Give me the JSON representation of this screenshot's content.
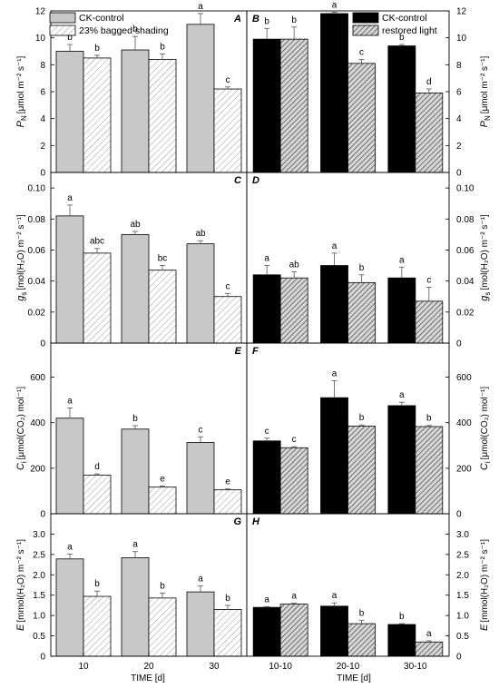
{
  "chart_data": {
    "type": "bar",
    "figure_xlabel": "TIME [d]",
    "columns": [
      {
        "categories": [
          "10",
          "20",
          "30"
        ],
        "series": [
          {
            "name": "CK-control",
            "color": "#c8c8c8",
            "pattern": "solid"
          },
          {
            "name": "23% bagged shading",
            "color": "#ffffff",
            "pattern": "hatch"
          }
        ]
      },
      {
        "categories": [
          "10-10",
          "20-10",
          "30-10"
        ],
        "series": [
          {
            "name": "CK-control",
            "color": "#000000",
            "pattern": "solid"
          },
          {
            "name": "restored light",
            "color": "#8c8c8c",
            "pattern": "hatch"
          }
        ]
      }
    ],
    "rows": [
      {
        "ylabel_main": "P",
        "ylabel_sub": "N",
        "ylabel_unit": "[μmol m⁻² s⁻¹]",
        "ylim": [
          0,
          12
        ],
        "ticks": [
          0,
          2,
          4,
          6,
          8,
          10,
          12
        ],
        "panels": [
          {
            "letter": "A",
            "values": [
              [
                9.0,
                9.1,
                11.0
              ],
              [
                8.5,
                8.4,
                6.2
              ]
            ],
            "errors": [
              [
                0.5,
                1.0,
                0.8
              ],
              [
                0.2,
                0.4,
                0.15
              ]
            ],
            "letters": [
              [
                "b",
                "b",
                "a"
              ],
              [
                "b",
                "b",
                "c"
              ]
            ]
          },
          {
            "letter": "B",
            "values": [
              [
                9.9,
                11.8,
                9.4
              ],
              [
                9.9,
                8.1,
                5.9
              ]
            ],
            "errors": [
              [
                0.8,
                0.1,
                0.1
              ],
              [
                0.9,
                0.3,
                0.3
              ]
            ],
            "letters": [
              [
                "b",
                "a",
                "b"
              ],
              [
                "b",
                "c",
                "d"
              ]
            ]
          }
        ]
      },
      {
        "ylabel_main": "g",
        "ylabel_sub": "s",
        "ylabel_unit": "[mol(H₂O) m⁻² s⁻¹]",
        "ylim": [
          0,
          0.11
        ],
        "ticks": [
          0,
          0.02,
          0.04,
          0.06,
          0.08,
          0.1
        ],
        "tick_labels": [
          "0",
          "0.02",
          "0.04",
          "0.06",
          "0.08",
          "0.10"
        ],
        "panels": [
          {
            "letter": "C",
            "values": [
              [
                0.082,
                0.07,
                0.064
              ],
              [
                0.058,
                0.047,
                0.03
              ]
            ],
            "errors": [
              [
                0.007,
                0.002,
                0.002
              ],
              [
                0.003,
                0.003,
                0.002
              ]
            ],
            "letters": [
              [
                "a",
                "ab",
                "ab"
              ],
              [
                "abc",
                "bc",
                "c"
              ]
            ]
          },
          {
            "letter": "D",
            "values": [
              [
                0.044,
                0.05,
                0.042
              ],
              [
                0.042,
                0.039,
                0.027
              ]
            ],
            "errors": [
              [
                0.006,
                0.008,
                0.007
              ],
              [
                0.004,
                0.005,
                0.009
              ]
            ],
            "letters": [
              [
                "a",
                "a",
                "a"
              ],
              [
                "ab",
                "b",
                "c"
              ]
            ]
          }
        ]
      },
      {
        "ylabel_main": "C",
        "ylabel_sub": "i",
        "ylabel_unit": "[μmol(CO₂) mol⁻¹]",
        "ylim": [
          0,
          750
        ],
        "ticks": [
          0,
          200,
          400,
          600
        ],
        "panels": [
          {
            "letter": "E",
            "values": [
              [
                420,
                372,
                313
              ],
              [
                170,
                117,
                105
              ]
            ],
            "errors": [
              [
                45,
                15,
                25
              ],
              [
                5,
                5,
                4
              ]
            ],
            "letters": [
              [
                "a",
                "b",
                "c"
              ],
              [
                "d",
                "e",
                "e"
              ]
            ]
          },
          {
            "letter": "F",
            "values": [
              [
                320,
                510,
                475
              ],
              [
                290,
                385,
                383
              ]
            ],
            "errors": [
              [
                12,
                75,
                15
              ],
              [
                5,
                5,
                5
              ]
            ],
            "letters": [
              [
                "c",
                "a",
                "a"
              ],
              [
                "c",
                "b",
                "b"
              ]
            ]
          }
        ]
      },
      {
        "ylabel_main": "E",
        "ylabel_sub": "",
        "ylabel_unit": "[mmol(H₂O) m⁻² s⁻¹]",
        "ylim": [
          0,
          3.5
        ],
        "ticks": [
          0,
          0.5,
          1.0,
          1.5,
          2.0,
          2.5,
          3.0
        ],
        "tick_labels": [
          "0",
          "0.5",
          "1.0",
          "1.5",
          "2.0",
          "2.5",
          "3.0"
        ],
        "panels": [
          {
            "letter": "G",
            "values": [
              [
                2.39,
                2.42,
                1.58
              ],
              [
                1.47,
                1.43,
                1.15
              ]
            ],
            "errors": [
              [
                0.12,
                0.15,
                0.15
              ],
              [
                0.13,
                0.12,
                0.1
              ]
            ],
            "letters": [
              [
                "a",
                "a",
                "a"
              ],
              [
                "b",
                "b",
                "b"
              ]
            ]
          },
          {
            "letter": "H",
            "values": [
              [
                1.2,
                1.23,
                0.78
              ],
              [
                1.28,
                0.8,
                0.35
              ]
            ],
            "errors": [
              [
                0.02,
                0.08,
                0.02
              ],
              [
                0.02,
                0.08,
                0.03
              ]
            ],
            "letters": [
              [
                "a",
                "a",
                "b"
              ],
              [
                "a",
                "b",
                "a"
              ]
            ]
          }
        ]
      }
    ]
  }
}
